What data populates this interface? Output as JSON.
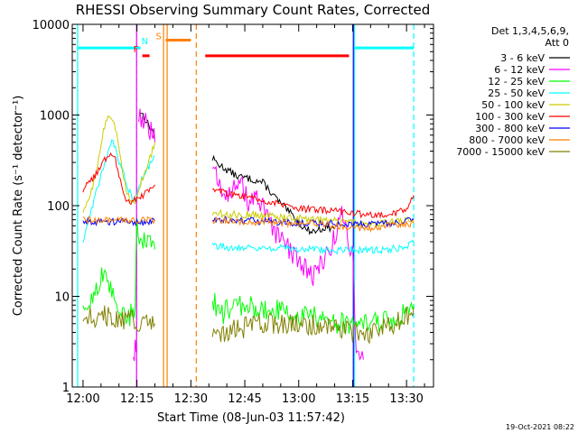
{
  "chart_data": {
    "type": "line",
    "title": "RHESSI Observing Summary Count Rates, Corrected",
    "xlabel": "Start Time (08-Jun-03 11:57:42)",
    "ylabel": "Corrected Count Rate (s⁻¹ detector⁻¹)",
    "yscale": "log",
    "ylim": [
      1,
      10000
    ],
    "xlim_minutes": [
      -3,
      97.5
    ],
    "x_units": "minutes after 12:00",
    "x_ticks": [
      {
        "m": 0,
        "label": "12:00"
      },
      {
        "m": 15,
        "label": "12:15"
      },
      {
        "m": 30,
        "label": "12:30"
      },
      {
        "m": 45,
        "label": "12:45"
      },
      {
        "m": 60,
        "label": "13:00"
      },
      {
        "m": 75,
        "label": "13:15"
      },
      {
        "m": 90,
        "label": "13:30"
      }
    ],
    "y_ticks": [
      {
        "v": 1,
        "label": "1"
      },
      {
        "v": 10,
        "label": "10"
      },
      {
        "v": 100,
        "label": "100"
      },
      {
        "v": 1000,
        "label": "1000"
      },
      {
        "v": 10000,
        "label": "10000"
      }
    ],
    "legend": {
      "position": "right",
      "header": [
        "Det 1,3,4,5,6,9,",
        "Att 0"
      ],
      "entries": [
        {
          "label": "3 - 6 keV",
          "color": "#000000"
        },
        {
          "label": "6 - 12 keV",
          "color": "#ff00ff"
        },
        {
          "label": "12 - 25 keV",
          "color": "#00ff00"
        },
        {
          "label": "25 - 50 keV",
          "color": "#00ffff"
        },
        {
          "label": "50 - 100 keV",
          "color": "#cccc00"
        },
        {
          "label": "100 - 300 keV",
          "color": "#ff0000"
        },
        {
          "label": "300 - 800 keV",
          "color": "#0000ff"
        },
        {
          "label": "800 - 7000 keV",
          "color": "#ff7f00"
        },
        {
          "label": "7000 - 15000 keV",
          "color": "#808000"
        }
      ]
    },
    "series": [
      {
        "name": "3 - 6 keV",
        "color": "#000000",
        "segments": [
          [
            [
              16,
              1100
            ],
            [
              17,
              950
            ],
            [
              18,
              800
            ],
            [
              19.5,
              650
            ],
            [
              20,
              550
            ]
          ],
          [
            [
              36,
              330
            ],
            [
              38,
              280
            ],
            [
              40,
              250
            ],
            [
              43,
              210
            ],
            [
              46,
              200
            ],
            [
              50,
              180
            ],
            [
              53,
              130
            ],
            [
              56,
              95
            ],
            [
              58,
              80
            ],
            [
              60,
              65
            ],
            [
              62,
              55
            ],
            [
              64,
              52
            ],
            [
              66,
              55
            ],
            [
              68,
              58
            ],
            [
              70,
              55
            ]
          ]
        ]
      },
      {
        "name": "6 - 12 keV",
        "color": "#ff00ff",
        "segments": [
          [
            [
              14,
              2
            ],
            [
              14.5,
              3
            ],
            [
              15,
              2.5
            ]
          ],
          [
            [
              15.5,
              1000
            ],
            [
              16.5,
              900
            ],
            [
              18,
              750
            ],
            [
              19.5,
              600
            ],
            [
              20,
              500
            ]
          ],
          [
            [
              36,
              250
            ],
            [
              38,
              180
            ],
            [
              40,
              140
            ],
            [
              42,
              150
            ],
            [
              44,
              170
            ],
            [
              46,
              110
            ],
            [
              48,
              120
            ],
            [
              50,
              95
            ],
            [
              52,
              60
            ],
            [
              54,
              45
            ],
            [
              56,
              38
            ],
            [
              58,
              30
            ],
            [
              60,
              25
            ],
            [
              62,
              20
            ],
            [
              64,
              17
            ],
            [
              66,
              22
            ],
            [
              68,
              30
            ],
            [
              70,
              45
            ],
            [
              72,
              80
            ],
            [
              73,
              55
            ],
            [
              75,
              30
            ],
            [
              76,
              2.5
            ],
            [
              78,
              2
            ]
          ]
        ]
      },
      {
        "name": "12 - 25 keV",
        "color": "#00ff00",
        "segments": [
          [
            [
              0,
              6
            ],
            [
              2,
              9
            ],
            [
              4,
              13
            ],
            [
              5.5,
              17
            ],
            [
              7,
              13
            ],
            [
              9,
              9
            ],
            [
              11,
              7
            ],
            [
              13,
              6
            ],
            [
              14.5,
              8
            ],
            [
              15,
              60
            ],
            [
              16,
              45
            ],
            [
              17,
              40
            ],
            [
              19,
              35
            ],
            [
              20,
              33
            ]
          ],
          [
            [
              36,
              10
            ],
            [
              38,
              6
            ],
            [
              40,
              7
            ],
            [
              45,
              8
            ],
            [
              50,
              7
            ],
            [
              55,
              7
            ],
            [
              60,
              6
            ],
            [
              65,
              6
            ],
            [
              70,
              5
            ],
            [
              75,
              5
            ],
            [
              80,
              5
            ],
            [
              85,
              5.5
            ],
            [
              88,
              6
            ],
            [
              90,
              7
            ],
            [
              92,
              8
            ]
          ]
        ]
      },
      {
        "name": "25 - 50 keV",
        "color": "#00ffff",
        "segments": [
          [
            [
              0,
              40
            ],
            [
              2,
              80
            ],
            [
              4,
              160
            ],
            [
              6,
              300
            ],
            [
              7,
              400
            ],
            [
              8,
              520
            ],
            [
              9,
              420
            ],
            [
              10,
              300
            ],
            [
              11,
              250
            ],
            [
              12,
              180
            ],
            [
              13,
              140
            ],
            [
              14,
              120
            ],
            [
              15,
              130
            ],
            [
              16,
              180
            ],
            [
              18,
              260
            ],
            [
              20,
              350
            ]
          ],
          [
            [
              36,
              36
            ],
            [
              40,
              35
            ],
            [
              45,
              35
            ],
            [
              50,
              34
            ],
            [
              55,
              34
            ],
            [
              60,
              33
            ],
            [
              65,
              33
            ],
            [
              70,
              32
            ],
            [
              75,
              33
            ],
            [
              80,
              32
            ],
            [
              85,
              33
            ],
            [
              90,
              35
            ],
            [
              92,
              40
            ]
          ]
        ]
      },
      {
        "name": "50 - 100 keV",
        "color": "#cccc00",
        "segments": [
          [
            [
              0,
              80
            ],
            [
              2,
              130
            ],
            [
              4,
              250
            ],
            [
              5,
              500
            ],
            [
              6,
              750
            ],
            [
              7,
              1000
            ],
            [
              8,
              920
            ],
            [
              9,
              700
            ],
            [
              10,
              450
            ],
            [
              11,
              250
            ],
            [
              12,
              150
            ],
            [
              13,
              120
            ],
            [
              14,
              110
            ],
            [
              15,
              120
            ],
            [
              16,
              170
            ],
            [
              17,
              220
            ],
            [
              18,
              280
            ],
            [
              20,
              500
            ]
          ],
          [
            [
              36,
              85
            ],
            [
              40,
              80
            ],
            [
              45,
              80
            ],
            [
              50,
              78
            ],
            [
              55,
              75
            ],
            [
              60,
              73
            ],
            [
              65,
              70
            ],
            [
              70,
              68
            ],
            [
              75,
              65
            ],
            [
              80,
              62
            ],
            [
              85,
              65
            ],
            [
              90,
              70
            ],
            [
              92,
              72
            ]
          ]
        ]
      },
      {
        "name": "100 - 300 keV",
        "color": "#ff0000",
        "segments": [
          [
            [
              0,
              150
            ],
            [
              2,
              180
            ],
            [
              4,
              230
            ],
            [
              6,
              320
            ],
            [
              7,
              360
            ],
            [
              8,
              390
            ],
            [
              9,
              330
            ],
            [
              10,
              210
            ],
            [
              11,
              150
            ],
            [
              12,
              120
            ],
            [
              13,
              112
            ],
            [
              14,
              115
            ],
            [
              15,
              118
            ],
            [
              16,
              125
            ],
            [
              18,
              140
            ],
            [
              20,
              170
            ]
          ],
          [
            [
              36,
              160
            ],
            [
              38,
              150
            ],
            [
              40,
              140
            ],
            [
              44,
              130
            ],
            [
              48,
              120
            ],
            [
              52,
              110
            ],
            [
              56,
              100
            ],
            [
              60,
              92
            ],
            [
              65,
              90
            ],
            [
              70,
              88
            ],
            [
              75,
              82
            ],
            [
              80,
              78
            ],
            [
              85,
              80
            ],
            [
              90,
              90
            ],
            [
              92,
              130
            ]
          ]
        ]
      },
      {
        "name": "300 - 800 keV",
        "color": "#0000ff",
        "segments": [
          [
            [
              0,
              68
            ],
            [
              5,
              67
            ],
            [
              10,
              67
            ],
            [
              15,
              65
            ],
            [
              20,
              68
            ]
          ],
          [
            [
              36,
              72
            ],
            [
              45,
              68
            ],
            [
              55,
              66
            ],
            [
              65,
              64
            ],
            [
              75,
              62
            ],
            [
              85,
              63
            ],
            [
              92,
              70
            ]
          ]
        ]
      },
      {
        "name": "800 - 7000 keV",
        "color": "#ff7f00",
        "segments": [
          [
            [
              0,
              70
            ],
            [
              5,
              70
            ],
            [
              10,
              68
            ],
            [
              15,
              69
            ],
            [
              20,
              70
            ]
          ],
          [
            [
              36,
              70
            ],
            [
              45,
              67
            ],
            [
              55,
              65
            ],
            [
              65,
              62
            ],
            [
              70,
              60
            ],
            [
              75,
              58
            ],
            [
              80,
              56
            ],
            [
              85,
              60
            ],
            [
              90,
              62
            ],
            [
              92,
              64
            ]
          ]
        ]
      },
      {
        "name": "7000 - 15000 keV",
        "color": "#808000",
        "segments": [
          [
            [
              0,
              6
            ],
            [
              4,
              6
            ],
            [
              8,
              6
            ],
            [
              12,
              5.5
            ],
            [
              16,
              5
            ],
            [
              20,
              5
            ]
          ],
          [
            [
              36,
              3.5
            ],
            [
              40,
              4
            ],
            [
              45,
              4.5
            ],
            [
              50,
              5
            ],
            [
              55,
              5
            ],
            [
              60,
              5
            ],
            [
              65,
              4.8
            ],
            [
              70,
              4.5
            ],
            [
              75,
              4
            ],
            [
              80,
              4
            ],
            [
              85,
              4.5
            ],
            [
              90,
              6
            ],
            [
              92,
              7.5
            ]
          ]
        ]
      }
    ],
    "annotations": {
      "flags": [
        {
          "label": "F",
          "color": "#ff0000",
          "y": 4500,
          "from": 16.5,
          "to": 18.5
        },
        {
          "label": "N",
          "color": "#00ffff",
          "y": 5500,
          "from": -1.5,
          "to": 16
        },
        {
          "label": "S",
          "color": "#ff7f00",
          "y": 6700,
          "from": 23,
          "to": 30
        },
        {
          "color": "#ff0000",
          "y": 4500,
          "from": 34,
          "to": 74
        },
        {
          "color": "#00ffff",
          "y": 5500,
          "from": 75.5,
          "to": 92
        }
      ],
      "vertical_lines": [
        {
          "m": -1.5,
          "color": "#00ffff",
          "style": "solid"
        },
        {
          "m": 14.9,
          "color": "#00ffff",
          "style": "dashed"
        },
        {
          "m": 14.9,
          "color": "#ff00ff",
          "style": "solid"
        },
        {
          "m": 22.4,
          "color": "#ff7f00",
          "style": "solid"
        },
        {
          "m": 23.4,
          "color": "#ff7f00",
          "style": "solid"
        },
        {
          "m": 31.5,
          "color": "#ff7f00",
          "style": "dashed"
        },
        {
          "m": 75.5,
          "color": "#00ffff",
          "style": "solid"
        },
        {
          "m": 75.2,
          "color": "#0000ff",
          "style": "solid"
        },
        {
          "m": 92,
          "color": "#00ffff",
          "style": "dashed"
        }
      ]
    },
    "timestamp": "19-Oct-2021 08:22"
  }
}
